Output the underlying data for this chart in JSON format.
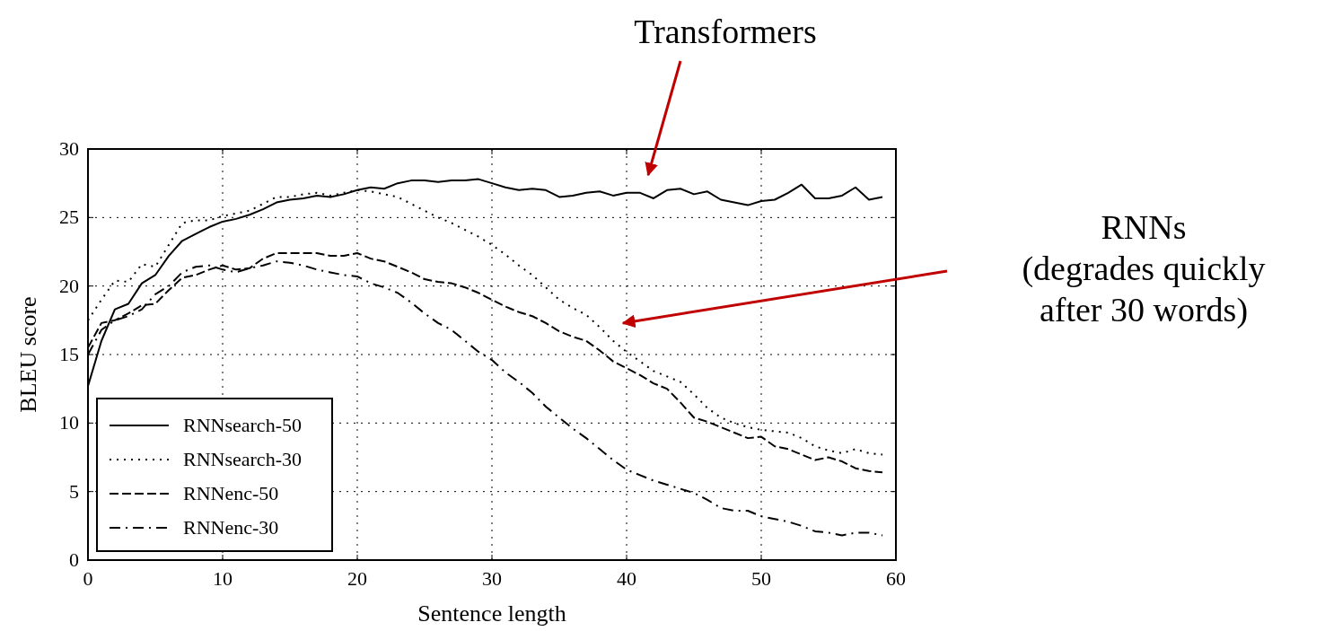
{
  "chart_data": {
    "type": "line",
    "xlabel": "Sentence length",
    "ylabel": "BLEU score",
    "x": [
      0,
      1,
      2,
      3,
      4,
      5,
      6,
      7,
      8,
      9,
      10,
      11,
      12,
      13,
      14,
      15,
      16,
      17,
      18,
      19,
      20,
      21,
      22,
      23,
      24,
      25,
      26,
      27,
      28,
      29,
      30,
      31,
      32,
      33,
      34,
      35,
      36,
      37,
      38,
      39,
      40,
      41,
      42,
      43,
      44,
      45,
      46,
      47,
      48,
      49,
      50,
      51,
      52,
      53,
      54,
      55,
      56,
      57,
      58,
      59
    ],
    "xlim": [
      0,
      60
    ],
    "xticks": [
      0,
      10,
      20,
      30,
      40,
      50,
      60
    ],
    "ylim": [
      0,
      30
    ],
    "yticks": [
      0,
      5,
      10,
      15,
      20,
      25,
      30
    ],
    "grid": true,
    "legend": "bottom left",
    "series": [
      {
        "name": "RNNsearch-50",
        "color": "#000000",
        "line_style": "solid",
        "values": [
          12.7,
          16,
          18.3,
          18.7,
          20.2,
          20.8,
          22.2,
          23.3,
          23.8,
          24.3,
          24.7,
          24.9,
          25.2,
          25.6,
          26.1,
          26.3,
          26.4,
          26.6,
          26.5,
          26.7,
          27,
          27.2,
          27.1,
          27.5,
          27.7,
          27.7,
          27.6,
          27.7,
          27.7,
          27.8,
          27.5,
          27.2,
          27,
          27.1,
          27,
          26.5,
          26.6,
          26.8,
          26.9,
          26.6,
          26.8,
          26.8,
          26.4,
          27,
          27.1,
          26.7,
          26.9,
          26.3,
          26.1,
          25.9,
          26.2,
          26.3,
          26.8,
          27.4,
          26.4,
          26.4,
          26.6,
          27.2,
          26.3,
          26.5
        ]
      },
      {
        "name": "RNNsearch-30",
        "color": "#000000",
        "line_style": "dotted",
        "values": [
          17.5,
          19,
          20.4,
          20.3,
          21.6,
          21.4,
          23,
          24.6,
          24.8,
          24.8,
          25.1,
          25.3,
          25.5,
          26,
          26.5,
          26.5,
          26.7,
          26.8,
          26.6,
          26.8,
          27,
          26.9,
          26.7,
          26.5,
          26,
          25.5,
          25,
          24.6,
          24.1,
          23.6,
          23,
          22.3,
          21.5,
          20.8,
          19.9,
          19,
          18.4,
          17.9,
          17,
          16,
          15.2,
          14.5,
          13.8,
          13.4,
          13,
          12.1,
          11.1,
          10.4,
          10,
          9.7,
          9.5,
          9.4,
          9.3,
          8.9,
          8.3,
          8,
          7.8,
          8.1,
          7.8,
          7.7
        ]
      },
      {
        "name": "RNNenc-50",
        "color": "#000000",
        "line_style": "dashed",
        "values": [
          15.5,
          17.3,
          17.5,
          18,
          18.6,
          18.7,
          19.7,
          20.6,
          20.8,
          21.2,
          21.5,
          21.2,
          21.3,
          22,
          22.4,
          22.4,
          22.4,
          22.4,
          22.2,
          22.2,
          22.4,
          22,
          21.8,
          21.4,
          21,
          20.5,
          20.3,
          20.2,
          19.9,
          19.5,
          19,
          18.5,
          18.1,
          17.8,
          17.3,
          16.7,
          16.3,
          16,
          15.3,
          14.5,
          14,
          13.5,
          12.9,
          12.5,
          11.5,
          10.4,
          10.1,
          9.7,
          9.3,
          8.9,
          9,
          8.3,
          8.1,
          7.7,
          7.3,
          7.5,
          7.2,
          6.7,
          6.5,
          6.4
        ]
      },
      {
        "name": "RNNenc-30",
        "color": "#000000",
        "line_style": "dashdot",
        "values": [
          15,
          16.8,
          17.5,
          17.8,
          18.3,
          19.4,
          20,
          21,
          21.4,
          21.5,
          21.2,
          21,
          21.3,
          21.5,
          21.8,
          21.7,
          21.5,
          21.2,
          21,
          20.8,
          20.7,
          20.2,
          19.9,
          19.5,
          18.8,
          18,
          17.3,
          16.8,
          16,
          15.2,
          14.6,
          13.7,
          13,
          12.2,
          11.2,
          10.4,
          9.6,
          8.9,
          8.1,
          7.3,
          6.6,
          6.2,
          5.8,
          5.5,
          5.2,
          4.9,
          4.4,
          3.8,
          3.6,
          3.6,
          3.2,
          3,
          2.8,
          2.5,
          2.1,
          2,
          1.8,
          2,
          2,
          1.8
        ]
      }
    ],
    "annotations": [
      "Transformers",
      "RNNs (degrades quickly after 30 words)"
    ]
  }
}
